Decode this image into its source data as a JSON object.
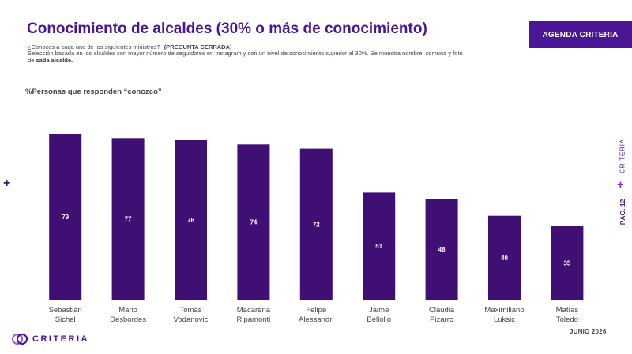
{
  "header": {
    "title": "Conocimiento de alcaldes (30% o más de conocimiento)",
    "question": "¿Conoces a cada uno de los siguientes ministros?",
    "question_tag": "(PREGUNTA CERRADA)",
    "description": "Selección basada en los alcaldes con mayor número de seguidores en Instagram y con un nivel de conocimiento superior al 30%. Se muestra nombre, comuna y foto de",
    "description_bold": "cada alcalde.",
    "agenda_button": "AGENDA CRITERIA"
  },
  "side": {
    "brand": "CRITERIA",
    "page": "PÁG. 12"
  },
  "footer": {
    "logo_text": "CRITERIA",
    "date": "JUNIO 2026"
  },
  "colors": {
    "accent": "#4b1694",
    "bar": "#3f0f73"
  },
  "chart_data": {
    "type": "bar",
    "title": "%Personas que responden “conozco”",
    "categories": [
      [
        "Sebastián",
        "Sichel"
      ],
      [
        "Mario",
        "Desbordes"
      ],
      [
        "Tomás",
        "Vodanovic"
      ],
      [
        "Macarena",
        "Ripamonti"
      ],
      [
        "Felipe",
        "Alessandri"
      ],
      [
        "Jaime",
        "Bellolio"
      ],
      [
        "Claudia",
        "Pizarro"
      ],
      [
        "Maximiliano",
        "Luksic"
      ],
      [
        "Matías",
        "Toledo"
      ]
    ],
    "values": [
      79,
      77,
      76,
      74,
      72,
      51,
      48,
      40,
      35
    ],
    "ylim": [
      0,
      80
    ],
    "grid": false,
    "legend": "none"
  }
}
